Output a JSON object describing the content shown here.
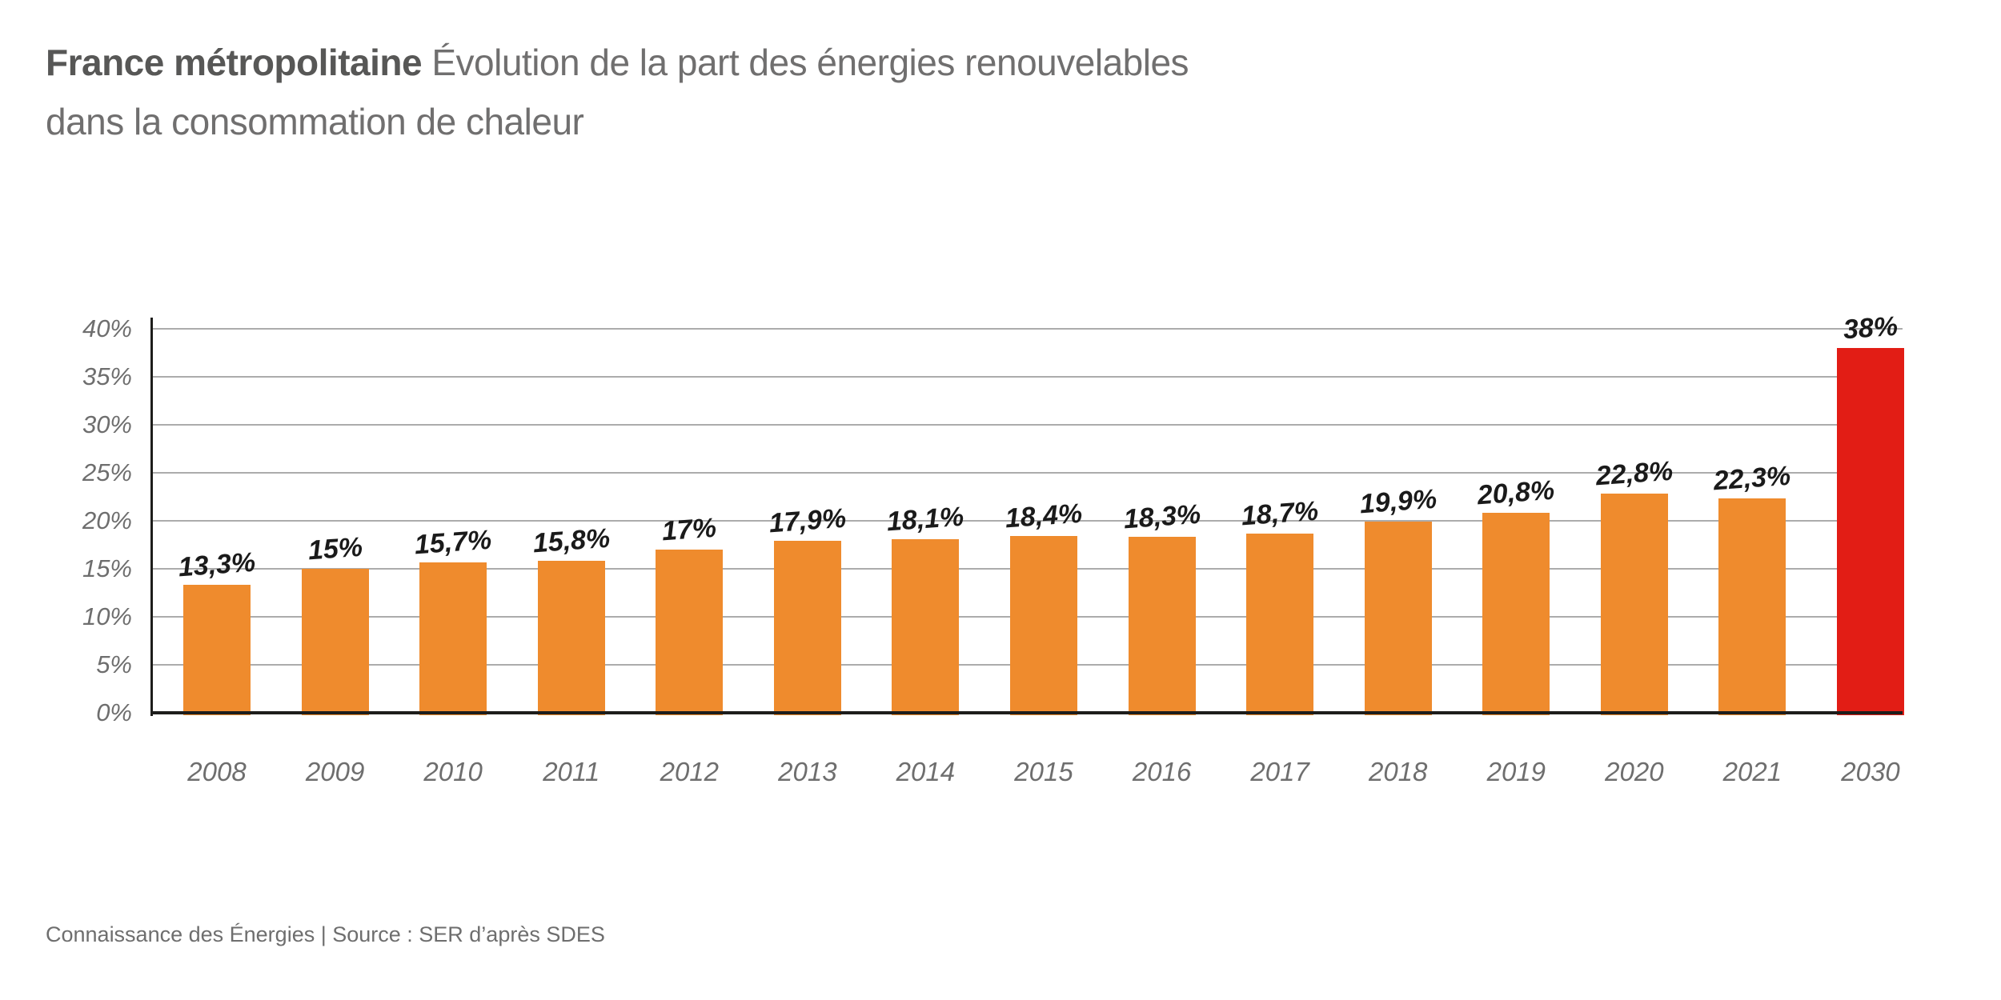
{
  "title": {
    "bold": "France métropolitaine",
    "rest": " Évolution de la part des énergies renouvelables dans la consommation de chaleur"
  },
  "footer": {
    "text": "Connaissance des Énergies | Source : SER d’après SDES"
  },
  "colors": {
    "bar_orange": "#EF8B2D",
    "bar_red": "#E21D15",
    "axis_black": "#1D1D1B",
    "gridline_gray": "#ACACAC",
    "tick_gray": "#6E6E6E"
  },
  "chart_data": {
    "type": "bar",
    "title": "France métropolitaine — Évolution de la part des énergies renouvelables dans la consommation de chaleur",
    "categories": [
      "2008",
      "2009",
      "2010",
      "2011",
      "2012",
      "2013",
      "2014",
      "2015",
      "2016",
      "2017",
      "2018",
      "2019",
      "2020",
      "2021",
      "2030"
    ],
    "values": [
      13.3,
      15,
      15.7,
      15.8,
      17,
      17.9,
      18.1,
      18.4,
      18.3,
      18.7,
      19.9,
      20.8,
      22.8,
      22.3,
      38
    ],
    "labels": [
      "13,3%",
      "15%",
      "15,7%",
      "15,8%",
      "17%",
      "17,9%",
      "18,1%",
      "18,4%",
      "18,3%",
      "18,7%",
      "19,9%",
      "20,8%",
      "22,8%",
      "22,3%",
      "38%"
    ],
    "highlight_index": 14,
    "bar_colors": {
      "default": "#EF8B2D",
      "highlight": "#E21D15"
    },
    "xlabel": "",
    "ylabel": "",
    "ylim": [
      0,
      40
    ],
    "ytick_step": 5,
    "yticks": [
      "0%",
      "5%",
      "10%",
      "15%",
      "20%",
      "25%",
      "30%",
      "35%",
      "40%"
    ],
    "grid": true,
    "legend": "none"
  }
}
